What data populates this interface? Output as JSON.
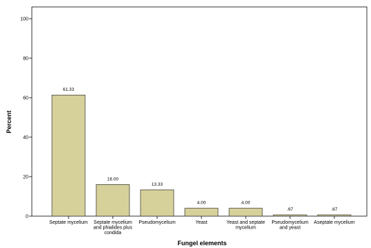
{
  "chart_data": {
    "type": "bar",
    "title": "",
    "xlabel": "Fungel elements",
    "ylabel": "Percent",
    "ylim": [
      0,
      100
    ],
    "yticks": [
      0,
      20,
      40,
      60,
      80,
      100
    ],
    "grid": false,
    "categories": [
      [
        "Septate mycelium"
      ],
      [
        "Septate mycelium",
        "and phialides plus",
        "condida"
      ],
      [
        "Pseudomycelium"
      ],
      [
        "Yeast"
      ],
      [
        "Yeast and septate",
        "mycelium"
      ],
      [
        "Pseudomycelium",
        "and yeast"
      ],
      [
        "Aseptate mycelium"
      ]
    ],
    "values": [
      61.33,
      16.0,
      13.33,
      4.0,
      4.0,
      0.67,
      0.67
    ],
    "data_labels": [
      "61.33",
      "16.00",
      "13.33",
      "4.00",
      "4.00",
      ".67",
      ".67"
    ],
    "colors": {
      "bar_fill": "#d6d09a",
      "bar_stroke": "#2a2a2a",
      "frame": "#000000"
    }
  }
}
